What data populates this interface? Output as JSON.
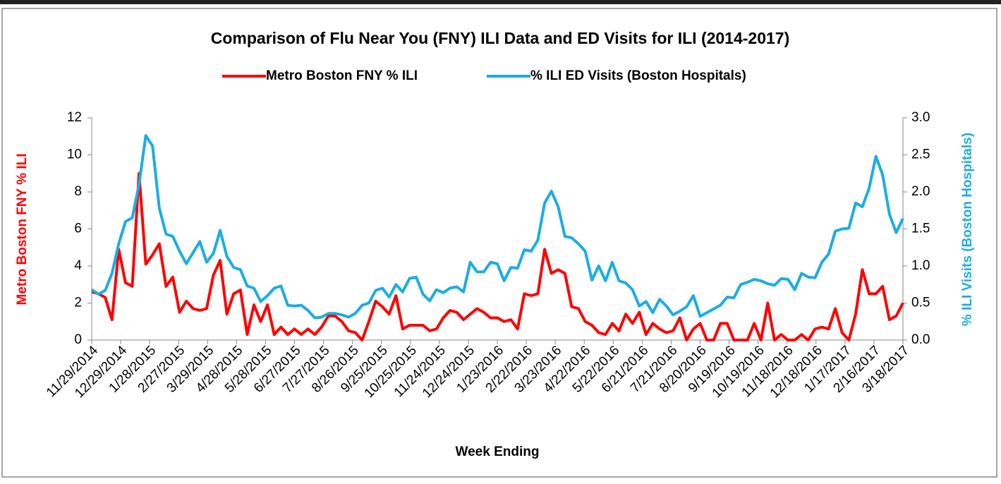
{
  "chart_data": {
    "type": "line",
    "title": "Comparison of Flu Near You (FNY) ILI Data and ED Visits for ILI (2014-2017)",
    "x_label": "Week Ending",
    "y_label": "Metro Boston FNY % ILI",
    "y2_label": "% ILI Visits (Boston Hospitals)",
    "legend": "top",
    "x": [
      "11/29/2014",
      "12/6/2014",
      "12/13/2014",
      "12/20/2014",
      "12/27/2014",
      "1/3/2015",
      "1/10/2015",
      "1/17/2015",
      "1/24/2015",
      "1/31/2015",
      "2/7/2015",
      "2/14/2015",
      "2/21/2015",
      "2/28/2015",
      "3/7/2015",
      "3/14/2015",
      "3/21/2015",
      "3/28/2015",
      "4/4/2015",
      "4/11/2015",
      "4/18/2015",
      "4/25/2015",
      "5/2/2015",
      "5/9/2015",
      "5/16/2015",
      "5/23/2015",
      "5/30/2015",
      "6/6/2015",
      "6/13/2015",
      "6/20/2015",
      "6/27/2015",
      "7/4/2015",
      "7/11/2015",
      "7/18/2015",
      "7/25/2015",
      "8/1/2015",
      "8/8/2015",
      "8/15/2015",
      "8/22/2015",
      "8/29/2015",
      "9/5/2015",
      "9/12/2015",
      "9/19/2015",
      "9/26/2015",
      "10/3/2015",
      "10/10/2015",
      "10/17/2015",
      "10/24/2015",
      "10/31/2015",
      "11/7/2015",
      "11/14/2015",
      "11/21/2015",
      "11/28/2015",
      "12/5/2015",
      "12/12/2015",
      "12/19/2015",
      "12/26/2015",
      "1/2/2016",
      "1/9/2016",
      "1/16/2016",
      "1/23/2016",
      "1/30/2016",
      "2/6/2016",
      "2/13/2016",
      "2/20/2016",
      "2/27/2016",
      "3/5/2016",
      "3/12/2016",
      "3/19/2016",
      "3/26/2016",
      "4/2/2016",
      "4/9/2016",
      "4/16/2016",
      "4/23/2016",
      "4/30/2016",
      "5/7/2016",
      "5/14/2016",
      "5/21/2016",
      "5/28/2016",
      "6/4/2016",
      "6/11/2016",
      "6/18/2016",
      "6/25/2016",
      "7/2/2016",
      "7/9/2016",
      "7/16/2016",
      "7/23/2016",
      "7/30/2016",
      "8/6/2016",
      "8/13/2016",
      "8/20/2016",
      "8/27/2016",
      "9/3/2016",
      "9/10/2016",
      "9/17/2016",
      "9/24/2016",
      "10/1/2016",
      "10/8/2016",
      "10/15/2016",
      "10/22/2016",
      "10/29/2016",
      "11/5/2016",
      "11/12/2016",
      "11/19/2016",
      "11/26/2016",
      "12/3/2016",
      "12/10/2016",
      "12/17/2016",
      "12/24/2016",
      "12/31/2016",
      "1/7/2017",
      "1/14/2017",
      "1/21/2017",
      "1/28/2017",
      "2/4/2017",
      "2/11/2017",
      "2/18/2017",
      "2/25/2017",
      "3/4/2017",
      "3/11/2017",
      "3/18/2017"
    ],
    "series": [
      {
        "name": "Metro Boston FNY % ILI",
        "color": "#ff0000",
        "axis": "y",
        "values": [
          2.6,
          2.5,
          2.3,
          1.1,
          4.9,
          3.1,
          2.9,
          9.0,
          4.1,
          4.6,
          5.2,
          2.9,
          3.4,
          1.5,
          2.1,
          1.7,
          1.6,
          1.7,
          3.5,
          4.3,
          1.4,
          2.5,
          2.7,
          0.3,
          1.9,
          1.0,
          1.9,
          0.3,
          0.7,
          0.3,
          0.6,
          0.3,
          0.6,
          0.3,
          0.7,
          1.3,
          1.3,
          1.0,
          0.5,
          0.4,
          0.0,
          1.0,
          2.1,
          1.8,
          1.4,
          2.4,
          0.6,
          0.8,
          0.8,
          0.8,
          0.5,
          0.6,
          1.2,
          1.6,
          1.5,
          1.1,
          1.4,
          1.7,
          1.5,
          1.2,
          1.2,
          1.0,
          1.1,
          0.6,
          2.5,
          2.4,
          2.5,
          4.9,
          3.6,
          3.8,
          3.6,
          1.8,
          1.7,
          1.0,
          0.8,
          0.4,
          0.3,
          0.9,
          0.5,
          1.4,
          0.9,
          1.5,
          0.3,
          0.9,
          0.6,
          0.4,
          0.5,
          1.2,
          0.0,
          0.6,
          0.9,
          0.0,
          0.0,
          0.9,
          0.9,
          0.0,
          0.0,
          0.0,
          0.9,
          0.0,
          2.0,
          0.0,
          0.3,
          0.0,
          0.0,
          0.3,
          0.0,
          0.6,
          0.7,
          0.6,
          1.7,
          0.4,
          0.0,
          1.4,
          3.8,
          2.5,
          2.5,
          2.9,
          1.1,
          1.3,
          2.0
        ]
      },
      {
        "name": "% ILI ED Visits (Boston Hospitals)",
        "color": "#1cade4",
        "axis": "y2",
        "values": [
          0.68,
          0.62,
          0.67,
          0.9,
          1.3,
          1.6,
          1.65,
          2.1,
          2.76,
          2.62,
          1.78,
          1.43,
          1.4,
          1.2,
          1.03,
          1.18,
          1.33,
          1.05,
          1.17,
          1.48,
          1.13,
          0.98,
          0.95,
          0.73,
          0.7,
          0.52,
          0.6,
          0.7,
          0.73,
          0.47,
          0.46,
          0.47,
          0.4,
          0.3,
          0.31,
          0.36,
          0.36,
          0.34,
          0.31,
          0.36,
          0.47,
          0.5,
          0.67,
          0.7,
          0.58,
          0.75,
          0.65,
          0.83,
          0.85,
          0.62,
          0.53,
          0.68,
          0.64,
          0.7,
          0.72,
          0.65,
          1.05,
          0.92,
          0.92,
          1.05,
          1.03,
          0.8,
          0.98,
          0.97,
          1.22,
          1.2,
          1.35,
          1.85,
          2.01,
          1.8,
          1.4,
          1.38,
          1.3,
          1.2,
          0.81,
          1.0,
          0.8,
          1.05,
          0.8,
          0.77,
          0.68,
          0.46,
          0.52,
          0.37,
          0.55,
          0.46,
          0.34,
          0.39,
          0.45,
          0.6,
          0.32,
          0.37,
          0.42,
          0.47,
          0.58,
          0.57,
          0.75,
          0.78,
          0.82,
          0.8,
          0.76,
          0.74,
          0.83,
          0.82,
          0.68,
          0.9,
          0.85,
          0.84,
          1.05,
          1.16,
          1.47,
          1.5,
          1.51,
          1.85,
          1.8,
          2.05,
          2.48,
          2.23,
          1.7,
          1.45,
          1.64
        ]
      }
    ],
    "xlim": [
      "11/29/2014",
      "3/18/2017"
    ],
    "xticks": [
      "11/29/2014",
      "12/29/2014",
      "1/28/2015",
      "2/27/2015",
      "3/29/2015",
      "4/28/2015",
      "5/28/2015",
      "6/27/2015",
      "7/27/2015",
      "8/26/2015",
      "9/25/2015",
      "10/25/2015",
      "11/24/2015",
      "12/24/2015",
      "1/23/2016",
      "2/22/2016",
      "3/23/2016",
      "4/22/2016",
      "5/22/2016",
      "6/21/2016",
      "7/21/2016",
      "8/20/2016",
      "9/19/2016",
      "10/19/2016",
      "11/18/2016",
      "12/18/2016",
      "1/17/2017",
      "2/16/2017",
      "3/18/2017"
    ],
    "ylim": [
      0,
      12
    ],
    "yticks": [
      0,
      2,
      4,
      6,
      8,
      10,
      12
    ],
    "y2lim": [
      0,
      3
    ],
    "y2ticks": [
      {
        "value": 0,
        "label": "0.0"
      },
      0.5,
      {
        "value": 1,
        "label": "1.0"
      },
      1.5,
      {
        "value": 2,
        "label": "2.0"
      },
      2.5,
      {
        "value": 3,
        "label": "3.0"
      }
    ],
    "grid": false
  }
}
